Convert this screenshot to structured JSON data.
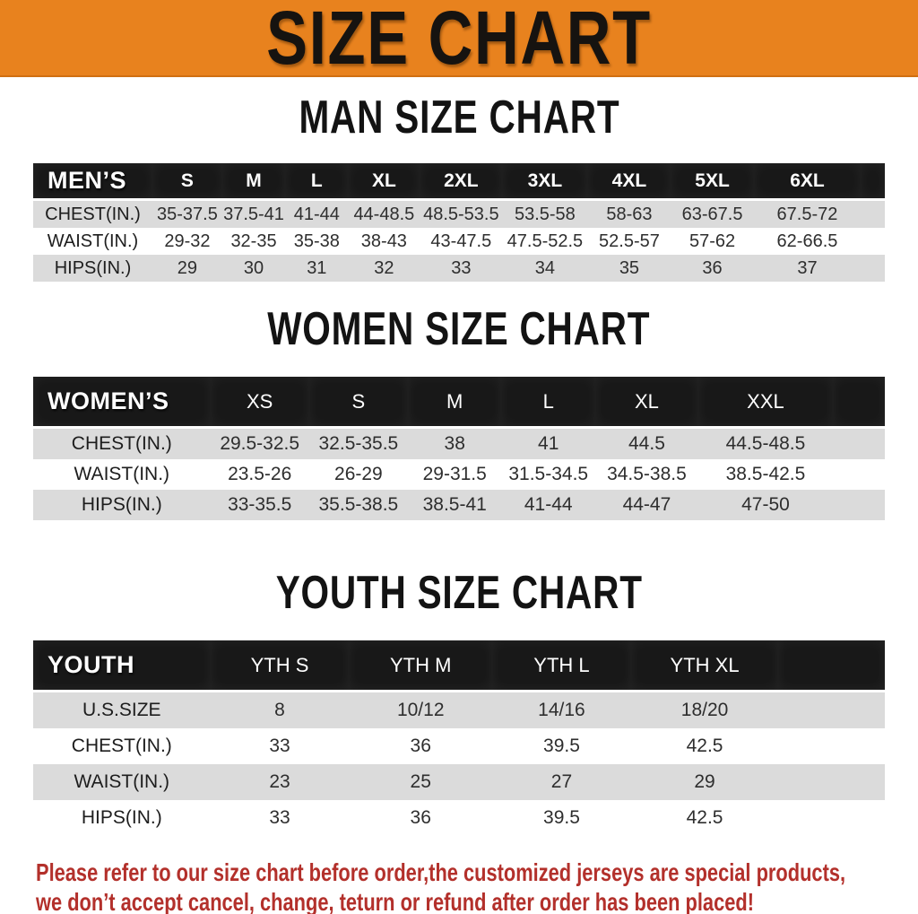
{
  "banner": {
    "title": "SIZE CHART"
  },
  "colors": {
    "banner_bg": "#e8821e",
    "header_bar_bg": "#181818",
    "row_stripe_gray": "#dbdbdb",
    "disclaimer_red": "#b3302b"
  },
  "sections": [
    {
      "id": "men",
      "title": "MAN SIZE CHART",
      "table": {
        "header": [
          "MEN’S",
          "S",
          "M",
          "L",
          "XL",
          "2XL",
          "3XL",
          "4XL",
          "5XL",
          "6XL"
        ],
        "rows": [
          {
            "label": "CHEST(IN.)",
            "values": [
              "35-37.5",
              "37.5-41",
              "41-44",
              "44-48.5",
              "48.5-53.5",
              "53.5-58",
              "58-63",
              "63-67.5",
              "67.5-72"
            ]
          },
          {
            "label": "WAIST(IN.)",
            "values": [
              "29-32",
              "32-35",
              "35-38",
              "38-43",
              "43-47.5",
              "47.5-52.5",
              "52.5-57",
              "57-62",
              "62-66.5"
            ]
          },
          {
            "label": "HIPS(IN.)",
            "values": [
              "29",
              "30",
              "31",
              "32",
              "33",
              "34",
              "35",
              "36",
              "37"
            ]
          }
        ]
      }
    },
    {
      "id": "women",
      "title": "WOMEN SIZE CHART",
      "table": {
        "header": [
          "WOMEN’S",
          "XS",
          "S",
          "M",
          "L",
          "XL",
          "XXL"
        ],
        "rows": [
          {
            "label": "CHEST(IN.)",
            "values": [
              "29.5-32.5",
              "32.5-35.5",
              "38",
              "41",
              "44.5",
              "44.5-48.5"
            ]
          },
          {
            "label": "WAIST(IN.)",
            "values": [
              "23.5-26",
              "26-29",
              "29-31.5",
              "31.5-34.5",
              "34.5-38.5",
              "38.5-42.5"
            ]
          },
          {
            "label": "HIPS(IN.)",
            "values": [
              "33-35.5",
              "35.5-38.5",
              "38.5-41",
              "41-44",
              "44-47",
              "47-50"
            ]
          }
        ]
      }
    },
    {
      "id": "youth",
      "title": "YOUTH SIZE CHART",
      "table": {
        "header": [
          "YOUTH",
          "YTH S",
          "YTH M",
          "YTH L",
          "YTH XL"
        ],
        "rows": [
          {
            "label": "U.S.SIZE",
            "values": [
              "8",
              "10/12",
              "14/16",
              "18/20"
            ]
          },
          {
            "label": "CHEST(IN.)",
            "values": [
              "33",
              "36",
              "39.5",
              "42.5"
            ]
          },
          {
            "label": "WAIST(IN.)",
            "values": [
              "23",
              "25",
              "27",
              "29"
            ]
          },
          {
            "label": "HIPS(IN.)",
            "values": [
              "33",
              "36",
              "39.5",
              "42.5"
            ]
          }
        ]
      }
    }
  ],
  "disclaimer": {
    "line1": "Please refer to our size chart before order,the customized jerseys are special products,",
    "line2": "we don’t accept cancel, change, teturn or refund after order has been placed!"
  }
}
